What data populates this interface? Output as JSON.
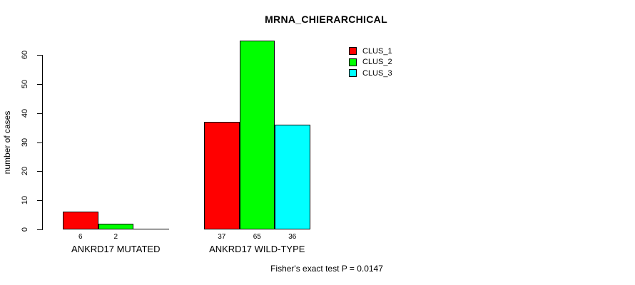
{
  "chart_data": {
    "type": "bar",
    "title": "MRNA_CHIERARCHICAL",
    "xlabel": "",
    "ylabel": "number of cases",
    "ylim": [
      0,
      60
    ],
    "yticks": [
      0,
      10,
      20,
      30,
      40,
      50,
      60
    ],
    "grid": false,
    "legend_position": "top-right",
    "categories": [
      "ANKRD17 MUTATED",
      "ANKRD17 WILD-TYPE"
    ],
    "series": [
      {
        "name": "CLUS_1",
        "color": "#ff0000",
        "values": [
          6,
          37
        ]
      },
      {
        "name": "CLUS_2",
        "color": "#00ff00",
        "values": [
          2,
          65
        ]
      },
      {
        "name": "CLUS_3",
        "color": "#00ffff",
        "values": [
          0,
          36
        ]
      }
    ],
    "bar_value_labels": [
      [
        "6",
        "2",
        ""
      ],
      [
        "37",
        "65",
        "36"
      ]
    ],
    "annotation": "Fisher's exact test P = 0.0147"
  },
  "colors": {
    "background": "#ffffff",
    "axis": "#000000",
    "text": "#000000",
    "clus_1": "#ff0000",
    "clus_2": "#00ff00",
    "clus_3": "#00ffff"
  }
}
